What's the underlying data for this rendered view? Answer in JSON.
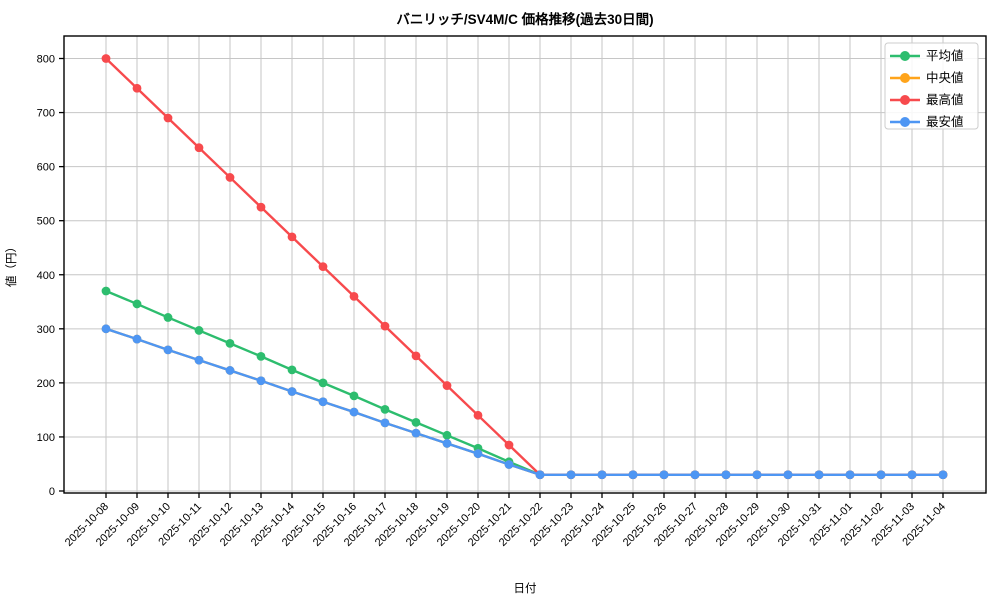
{
  "chart_data": {
    "type": "line",
    "title": "バニリッチ/SV4M/C 価格推移(過去30日間)",
    "xlabel": "日付",
    "ylabel": "値（円）",
    "x": [
      "2025-10-08",
      "2025-10-09",
      "2025-10-10",
      "2025-10-11",
      "2025-10-12",
      "2025-10-13",
      "2025-10-14",
      "2025-10-15",
      "2025-10-16",
      "2025-10-17",
      "2025-10-18",
      "2025-10-19",
      "2025-10-20",
      "2025-10-21",
      "2025-10-22",
      "2025-10-23",
      "2025-10-24",
      "2025-10-25",
      "2025-10-26",
      "2025-10-27",
      "2025-10-28",
      "2025-10-29",
      "2025-10-30",
      "2025-10-31",
      "2025-11-01",
      "2025-11-02",
      "2025-11-03",
      "2025-11-04"
    ],
    "yticks": [
      0,
      100,
      200,
      300,
      400,
      500,
      600,
      700,
      800
    ],
    "ylim": [
      -10,
      840
    ],
    "grid": true,
    "grid_color": "#c6c6c6",
    "axis_color": "#000000",
    "legend_position": "upper right",
    "series": [
      {
        "name": "平均値",
        "color": "#2dbd6e",
        "values": [
          370,
          346,
          321,
          297,
          273,
          249,
          224,
          200,
          176,
          151,
          127,
          103,
          79,
          54,
          30,
          30,
          30,
          30,
          30,
          30,
          30,
          30,
          30,
          30,
          30,
          30,
          30,
          30
        ]
      },
      {
        "name": "中央値",
        "color": "#ffa41b",
        "values": [
          300,
          281,
          261,
          242,
          223,
          204,
          184,
          165,
          146,
          126,
          107,
          88,
          69,
          49,
          30,
          30,
          30,
          30,
          30,
          30,
          30,
          30,
          30,
          30,
          30,
          30,
          30,
          30
        ]
      },
      {
        "name": "最高値",
        "color": "#f74a4d",
        "values": [
          800,
          745,
          690,
          635,
          580,
          525,
          470,
          415,
          360,
          305,
          250,
          195,
          140,
          85,
          30,
          30,
          30,
          30,
          30,
          30,
          30,
          30,
          30,
          30,
          30,
          30,
          30,
          30
        ]
      },
      {
        "name": "最安値",
        "color": "#4e96f3",
        "values": [
          300,
          281,
          261,
          242,
          223,
          204,
          184,
          165,
          146,
          126,
          107,
          88,
          69,
          49,
          30,
          30,
          30,
          30,
          30,
          30,
          30,
          30,
          30,
          30,
          30,
          30,
          30,
          30
        ]
      }
    ]
  }
}
